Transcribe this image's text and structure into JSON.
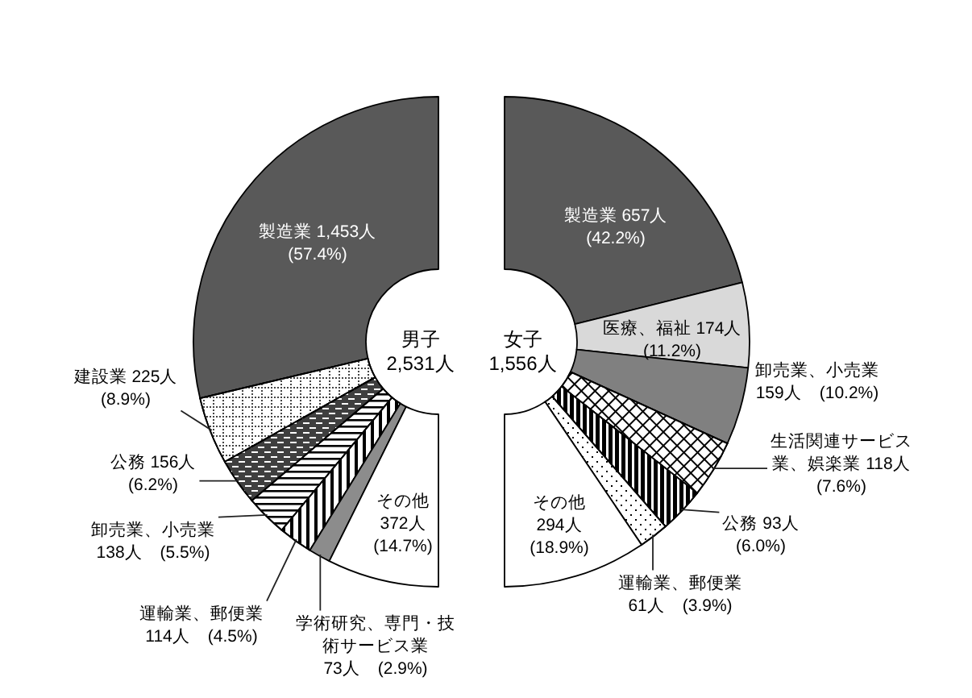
{
  "chart_data": [
    {
      "type": "donut",
      "title": "男子",
      "subtitle": "2,531人",
      "categories": [
        "製造業",
        "建設業",
        "公務",
        "卸売業、小売業",
        "運輸業、郵便業",
        "学術研究、専門・技術サービス業",
        "その他"
      ],
      "values": [
        1453,
        225,
        156,
        138,
        114,
        73,
        372
      ],
      "colors": [
        "#595959",
        "#ffffff",
        "#3f3f3f",
        "#ffffff",
        "#ffffff",
        "#8c8c8c",
        "#ffffff"
      ],
      "value_labels": [
        "1,453人 (57.4%)",
        "225人 (8.9%)",
        "156人 (6.2%)",
        "138人 (5.5%)",
        "114人 (4.5%)",
        "73人 (2.9%)",
        "372人 (14.7%)"
      ]
    },
    {
      "type": "donut",
      "title": "女子",
      "subtitle": "1,556人",
      "categories": [
        "製造業",
        "医療、福祉",
        "卸売業、小売業",
        "生活関連サービス業、娯楽業",
        "公務",
        "運輸業、郵便業",
        "その他"
      ],
      "values": [
        657,
        174,
        159,
        118,
        93,
        61,
        294
      ],
      "colors": [
        "#595959",
        "#d9d9d9",
        "#808080",
        "#ffffff",
        "#000000",
        "#ffffff",
        "#ffffff"
      ],
      "value_labels": [
        "657人 (42.2%)",
        "174人 (11.2%)",
        "159人 (10.2%)",
        "118人 (7.6%)",
        "93人 (6.0%)",
        "61人 (3.9%)",
        "294人 (18.9%)"
      ]
    }
  ]
}
